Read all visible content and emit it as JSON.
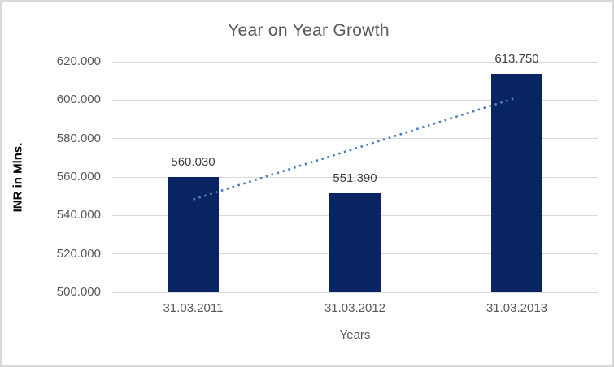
{
  "chart_data": {
    "type": "bar",
    "title": "Year on Year Growth",
    "xlabel": "Years",
    "ylabel": "INR in Mlns.",
    "categories": [
      "31.03.2011",
      "31.03.2012",
      "31.03.2013"
    ],
    "values": [
      560.03,
      551.39,
      613.75
    ],
    "data_labels": [
      "560.030",
      "551.390",
      "613.750"
    ],
    "ylim": [
      500,
      620
    ],
    "ytick_step": 20,
    "yticks": [
      {
        "value": 500,
        "label": "500.000"
      },
      {
        "value": 520,
        "label": "520.000"
      },
      {
        "value": 540,
        "label": "540.000"
      },
      {
        "value": 560,
        "label": "560.000"
      },
      {
        "value": 580,
        "label": "580.000"
      },
      {
        "value": 600,
        "label": "600.000"
      },
      {
        "value": 620,
        "label": "620.000"
      }
    ],
    "grid": true,
    "legend": "none",
    "trendline": {
      "style": "dotted",
      "start_value": 548.3,
      "end_value": 601.3
    },
    "colors": {
      "bar": "#082461",
      "trendline": "#4a7ebb",
      "gridline": "#d9d9d9",
      "border": "#d9d9d9",
      "title_text": "#595959",
      "tick_text": "#595959",
      "data_label_text": "#404040",
      "y_axis_title_text": "#000000",
      "background": "#ffffff"
    }
  }
}
